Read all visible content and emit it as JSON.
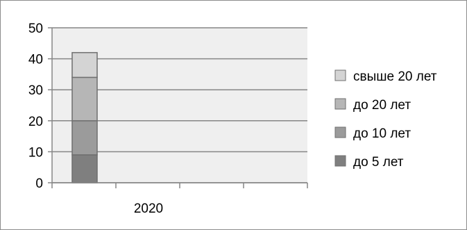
{
  "chart_data": {
    "type": "bar",
    "stacked": true,
    "categories": [
      "2020"
    ],
    "series": [
      {
        "name": "до 5 лет",
        "values": [
          9
        ],
        "color": "#7f7f7f"
      },
      {
        "name": "до 10 лет",
        "values": [
          11
        ],
        "color": "#9b9b9b"
      },
      {
        "name": "до 20 лет",
        "values": [
          14
        ],
        "color": "#b6b6b6"
      },
      {
        "name": "свыше 20 лет",
        "values": [
          8
        ],
        "color": "#d4d4d4"
      }
    ],
    "ylim": [
      0,
      50
    ],
    "yticks": [
      "0",
      "10",
      "20",
      "30",
      "40",
      "50"
    ],
    "grid": true,
    "legend": "right",
    "plot_background": "#efefef"
  }
}
